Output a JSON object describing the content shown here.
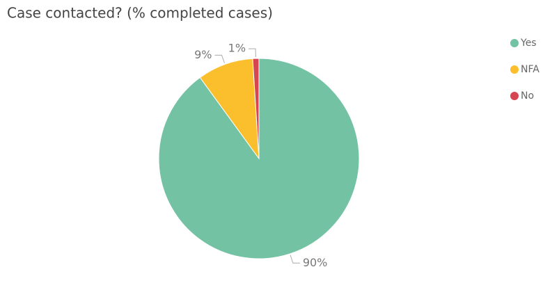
{
  "chart_data": {
    "type": "pie",
    "title": "Case contacted? (% completed cases)",
    "categories": [
      "Yes",
      "NFA",
      "No"
    ],
    "values": [
      90,
      9,
      1
    ],
    "value_labels": [
      "90%",
      "9%",
      "1%"
    ],
    "colors": [
      "#73c2a3",
      "#fbbf2e",
      "#d64550"
    ],
    "legend": "right"
  }
}
